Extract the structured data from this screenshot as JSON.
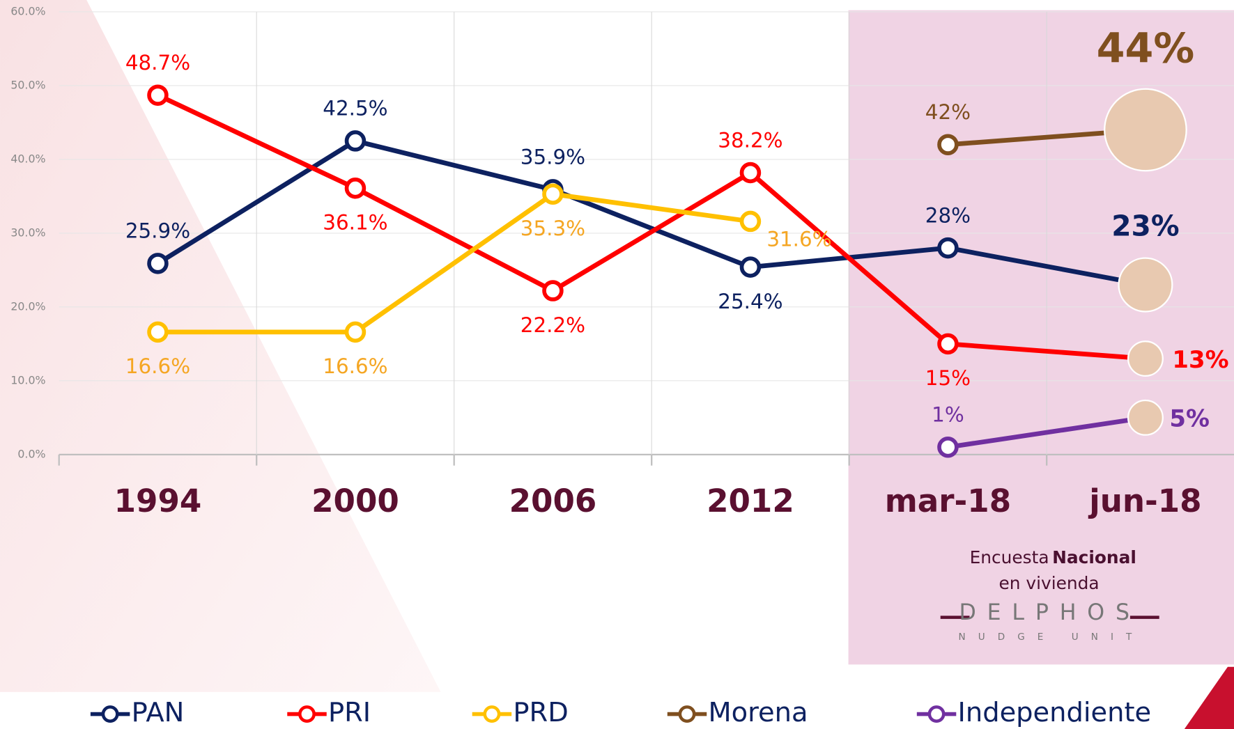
{
  "chart_data": {
    "type": "line",
    "categories": [
      "1994",
      "2000",
      "2006",
      "2012",
      "mar-18",
      "jun-18"
    ],
    "series": [
      {
        "name": "PAN",
        "color": "#0d2160",
        "values": [
          25.9,
          42.5,
          35.9,
          25.4,
          28,
          23
        ],
        "value_labels": [
          "25.9%",
          "42.5%",
          "35.9%",
          "25.4%",
          "28%",
          "23%"
        ]
      },
      {
        "name": "PRI",
        "color": "#ff0000",
        "values": [
          48.7,
          36.1,
          22.2,
          38.2,
          15,
          13
        ],
        "value_labels": [
          "48.7%",
          "36.1%",
          "22.2%",
          "38.2%",
          "15%",
          "13%"
        ]
      },
      {
        "name": "PRD",
        "color": "#ffc000",
        "values": [
          16.6,
          16.6,
          35.3,
          31.6,
          null,
          null
        ],
        "value_labels": [
          "16.6%",
          "16.6%",
          "35.3%",
          "31.6%",
          null,
          null
        ]
      },
      {
        "name": "Morena",
        "color": "#7f4f1f",
        "values": [
          null,
          null,
          null,
          null,
          42,
          44
        ],
        "value_labels": [
          null,
          null,
          null,
          null,
          "42%",
          "44%"
        ]
      },
      {
        "name": "Independiente",
        "color": "#7030a0",
        "values": [
          null,
          null,
          null,
          null,
          1,
          5
        ],
        "value_labels": [
          null,
          null,
          null,
          null,
          "1%",
          "5%"
        ]
      }
    ],
    "ylim": [
      0,
      60
    ],
    "yticks": [
      {
        "value": 0,
        "label": "0.0%"
      },
      {
        "value": 10,
        "label": "10.0%"
      },
      {
        "value": 20,
        "label": "20.0%"
      },
      {
        "value": 30,
        "label": "30.0%"
      },
      {
        "value": 40,
        "label": "40.0%"
      },
      {
        "value": 50,
        "label": "50.0%"
      },
      {
        "value": 60,
        "label": "60.0%"
      }
    ],
    "grid": true,
    "legend": "bottom",
    "source": {
      "text": "Encuesta",
      "bold": "Nacional",
      "line2": "en vivienda"
    },
    "brand": "DELPHOS",
    "brand_sub": "NUDGE UNIT"
  }
}
